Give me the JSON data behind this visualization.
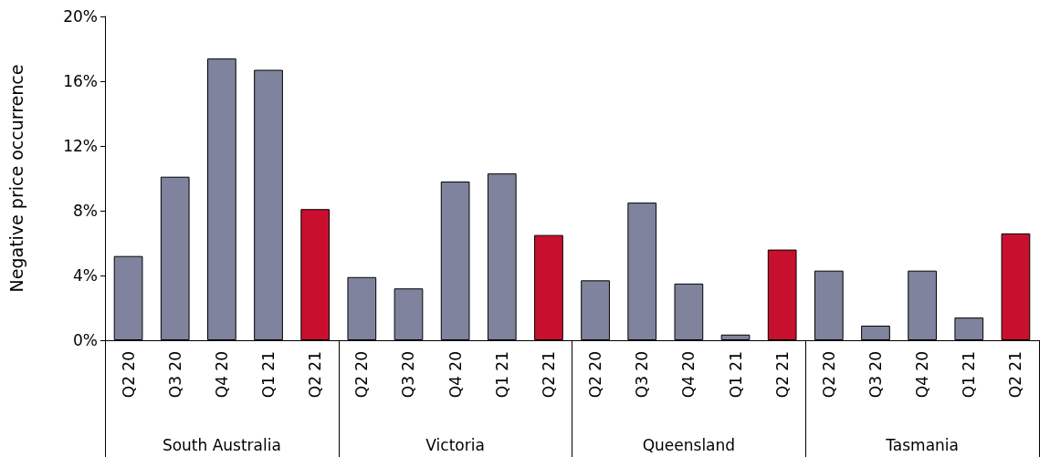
{
  "chart_data": {
    "type": "bar",
    "ylabel": "Negative price occurrence",
    "categories": [
      "Q2 20",
      "Q3 20",
      "Q4 20",
      "Q1 21",
      "Q2 21",
      "Q2 20",
      "Q3 20",
      "Q4 20",
      "Q1 21",
      "Q2 21",
      "Q2 20",
      "Q3 20",
      "Q4 20",
      "Q1 21",
      "Q2 21",
      "Q2 20",
      "Q3 20",
      "Q4 20",
      "Q1 21",
      "Q2 21"
    ],
    "values": [
      5.2,
      10.1,
      17.4,
      16.7,
      8.1,
      3.9,
      3.2,
      9.8,
      10.3,
      6.5,
      3.7,
      8.5,
      3.5,
      0.35,
      5.6,
      4.3,
      0.9,
      4.3,
      1.4,
      6.6
    ],
    "colors": [
      "#80839d",
      "#80839d",
      "#80839d",
      "#80839d",
      "#c8102e",
      "#80839d",
      "#80839d",
      "#80839d",
      "#80839d",
      "#c8102e",
      "#80839d",
      "#80839d",
      "#80839d",
      "#80839d",
      "#c8102e",
      "#80839d",
      "#80839d",
      "#80839d",
      "#80839d",
      "#c8102e"
    ],
    "annotations": [
      "South Australia",
      "Victoria",
      "Queensland",
      "Tasmania"
    ],
    "ylim": [
      0,
      20
    ],
    "yticks": [
      {
        "value": 0,
        "label": "0%"
      },
      {
        "value": 4,
        "label": "4%"
      },
      {
        "value": 8,
        "label": "8%"
      },
      {
        "value": 12,
        "label": "12%"
      },
      {
        "value": 16,
        "label": "16%"
      },
      {
        "value": 20,
        "label": "20%"
      }
    ],
    "grid": false
  }
}
